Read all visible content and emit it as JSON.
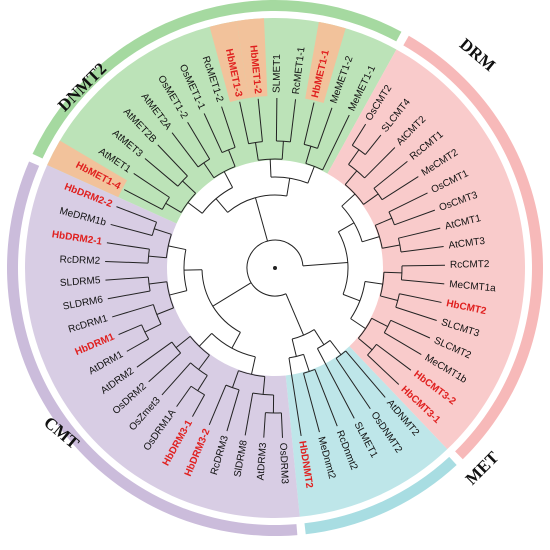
{
  "figure": {
    "colors": {
      "DNMT2": "#a8dde2",
      "DRM": "#cbbcdb",
      "MET": "#a5d9a0",
      "CMT": "#f7b9b9",
      "highlight_text": "#e0201f",
      "highlight_bg": "#f2c29b",
      "text": "#111111",
      "branch": "#222222"
    },
    "groups": [
      {
        "id": "DNMT2",
        "label": "DNMT2",
        "color_key": "DNMT2"
      },
      {
        "id": "DRM",
        "label": "DRM",
        "color_key": "DRM"
      },
      {
        "id": "MET",
        "label": "MET",
        "color_key": "MET"
      },
      {
        "id": "CMT",
        "label": "CMT",
        "color_key": "CMT"
      }
    ],
    "leaves": [
      {
        "label": "HbDNMT2",
        "group": "DNMT2",
        "highlight": true
      },
      {
        "label": "OsDRM3",
        "group": "DRM",
        "highlight": false
      },
      {
        "label": "AtDRM3",
        "group": "DRM",
        "highlight": false
      },
      {
        "label": "SlDRM8",
        "group": "DRM",
        "highlight": false
      },
      {
        "label": "RcDRM3",
        "group": "DRM",
        "highlight": false
      },
      {
        "label": "HbDRM3-2",
        "group": "DRM",
        "highlight": true
      },
      {
        "label": "HbDRM3-1",
        "group": "DRM",
        "highlight": true
      },
      {
        "label": "OsDRM1A",
        "group": "DRM",
        "highlight": false
      },
      {
        "label": "OsZmet3",
        "group": "DRM",
        "highlight": false
      },
      {
        "label": "OsDRM2",
        "group": "DRM",
        "highlight": false
      },
      {
        "label": "AtDRM2",
        "group": "DRM",
        "highlight": false
      },
      {
        "label": "AtDRM1",
        "group": "DRM",
        "highlight": false
      },
      {
        "label": "HbDRM1",
        "group": "DRM",
        "highlight": true
      },
      {
        "label": "RcDRM1",
        "group": "DRM",
        "highlight": false
      },
      {
        "label": "SLDRM6",
        "group": "DRM",
        "highlight": false
      },
      {
        "label": "SLDRM5",
        "group": "DRM",
        "highlight": false
      },
      {
        "label": "RcDRM2",
        "group": "DRM",
        "highlight": false
      },
      {
        "label": "HbDRM2-1",
        "group": "DRM",
        "highlight": true
      },
      {
        "label": "MeDRM1b",
        "group": "DRM",
        "highlight": false
      },
      {
        "label": "HbDRM2-2",
        "group": "DRM",
        "highlight": true
      },
      {
        "label": "HbMET1-4",
        "group": "MET",
        "highlight": true,
        "shaded": true
      },
      {
        "label": "AtMET1",
        "group": "MET",
        "highlight": false
      },
      {
        "label": "AtMET3",
        "group": "MET",
        "highlight": false
      },
      {
        "label": "AtMET2B",
        "group": "MET",
        "highlight": false
      },
      {
        "label": "AtMET2A",
        "group": "MET",
        "highlight": false
      },
      {
        "label": "OsMET1-2",
        "group": "MET",
        "highlight": false
      },
      {
        "label": "OsMET1-1",
        "group": "MET",
        "highlight": false
      },
      {
        "label": "RcMET1-2",
        "group": "MET",
        "highlight": false
      },
      {
        "label": "HbMET1-3",
        "group": "MET",
        "highlight": true,
        "shaded": true
      },
      {
        "label": "HbMET1-2",
        "group": "MET",
        "highlight": true,
        "shaded": true
      },
      {
        "label": "SLMET1",
        "group": "MET",
        "highlight": false
      },
      {
        "label": "RcMET1-1",
        "group": "MET",
        "highlight": false
      },
      {
        "label": "HbMET1-1",
        "group": "MET",
        "highlight": true,
        "shaded": true
      },
      {
        "label": "MeMET1-2",
        "group": "MET",
        "highlight": false
      },
      {
        "label": "MeMET1-1",
        "group": "MET",
        "highlight": false
      },
      {
        "label": "OsCMT2",
        "group": "CMT",
        "highlight": false
      },
      {
        "label": "SLCMT4",
        "group": "CMT",
        "highlight": false
      },
      {
        "label": "AtCMT2",
        "group": "CMT",
        "highlight": false
      },
      {
        "label": "RcCMT1",
        "group": "CMT",
        "highlight": false
      },
      {
        "label": "MeCMT2",
        "group": "CMT",
        "highlight": false
      },
      {
        "label": "OsCMT1",
        "group": "CMT",
        "highlight": false
      },
      {
        "label": "OsCMT3",
        "group": "CMT",
        "highlight": false
      },
      {
        "label": "AtCMT1",
        "group": "CMT",
        "highlight": false
      },
      {
        "label": "AtCMT3",
        "group": "CMT",
        "highlight": false
      },
      {
        "label": "RcCMT2",
        "group": "CMT",
        "highlight": false
      },
      {
        "label": "MeCMT1a",
        "group": "CMT",
        "highlight": false
      },
      {
        "label": "HbCMT2",
        "group": "CMT",
        "highlight": true
      },
      {
        "label": "SLCMT3",
        "group": "CMT",
        "highlight": false
      },
      {
        "label": "SLCMT2",
        "group": "CMT",
        "highlight": false
      },
      {
        "label": "MeCMT1b",
        "group": "CMT",
        "highlight": false
      },
      {
        "label": "HbCMT3-2",
        "group": "CMT",
        "highlight": true
      },
      {
        "label": "HbCMT3-1",
        "group": "CMT",
        "highlight": true
      },
      {
        "label": "AtDNMT2",
        "group": "DNMT2",
        "highlight": false
      },
      {
        "label": "OsDNMT2",
        "group": "DNMT2",
        "highlight": false
      },
      {
        "label": "SLMET1",
        "group": "DNMT2",
        "highlight": false
      },
      {
        "label": "RcDnmt2",
        "group": "DNMT2",
        "highlight": false
      },
      {
        "label": "MeDnmt2",
        "group": "DNMT2",
        "highlight": false
      }
    ]
  }
}
